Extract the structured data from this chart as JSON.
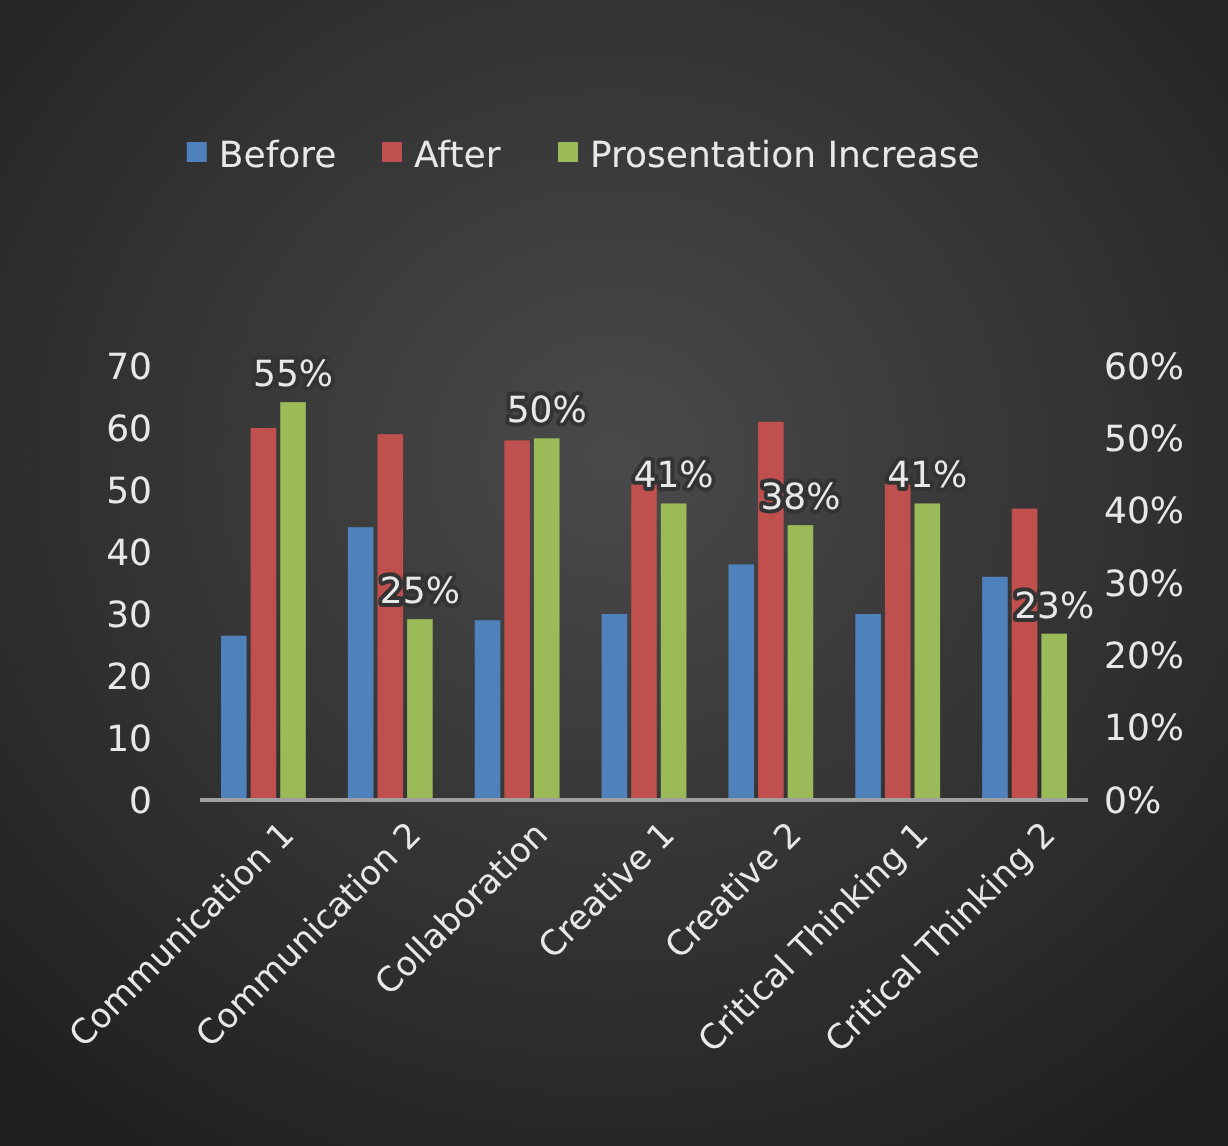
{
  "chart_data": {
    "type": "bar",
    "categories": [
      "Communication 1",
      "Communication 2",
      "Collaboration",
      "Creative 1",
      "Creative 2",
      "Critical Thinking 1",
      "Critical Thinking 2"
    ],
    "series": [
      {
        "name": "Before",
        "color": "#4f81bd",
        "values": [
          26.5,
          44,
          29,
          30,
          38,
          30,
          36
        ]
      },
      {
        "name": "After",
        "color": "#c0504d",
        "values": [
          60,
          59,
          58,
          51,
          61,
          51,
          47
        ]
      },
      {
        "name": "Prosentation Increase",
        "color": "#9bbb59",
        "axis": "y2",
        "values": [
          55,
          25,
          50,
          41,
          38,
          41,
          23
        ],
        "value_labels": [
          "55%",
          "25%",
          "50%",
          "41%",
          "38%",
          "41%",
          "23%"
        ]
      }
    ],
    "ylim": [
      0,
      70
    ],
    "yticks": [
      0,
      10,
      20,
      30,
      40,
      50,
      60,
      70
    ],
    "y2lim": [
      0,
      60
    ],
    "y2ticks": [
      {
        "value": 0,
        "label": "0%"
      },
      {
        "value": 10,
        "label": "10%"
      },
      {
        "value": 20,
        "label": "20%"
      },
      {
        "value": 30,
        "label": "30%"
      },
      {
        "value": 40,
        "label": "40%"
      },
      {
        "value": 50,
        "label": "50%"
      },
      {
        "value": 60,
        "label": "60%"
      }
    ],
    "legend": "top",
    "grid": false
  }
}
